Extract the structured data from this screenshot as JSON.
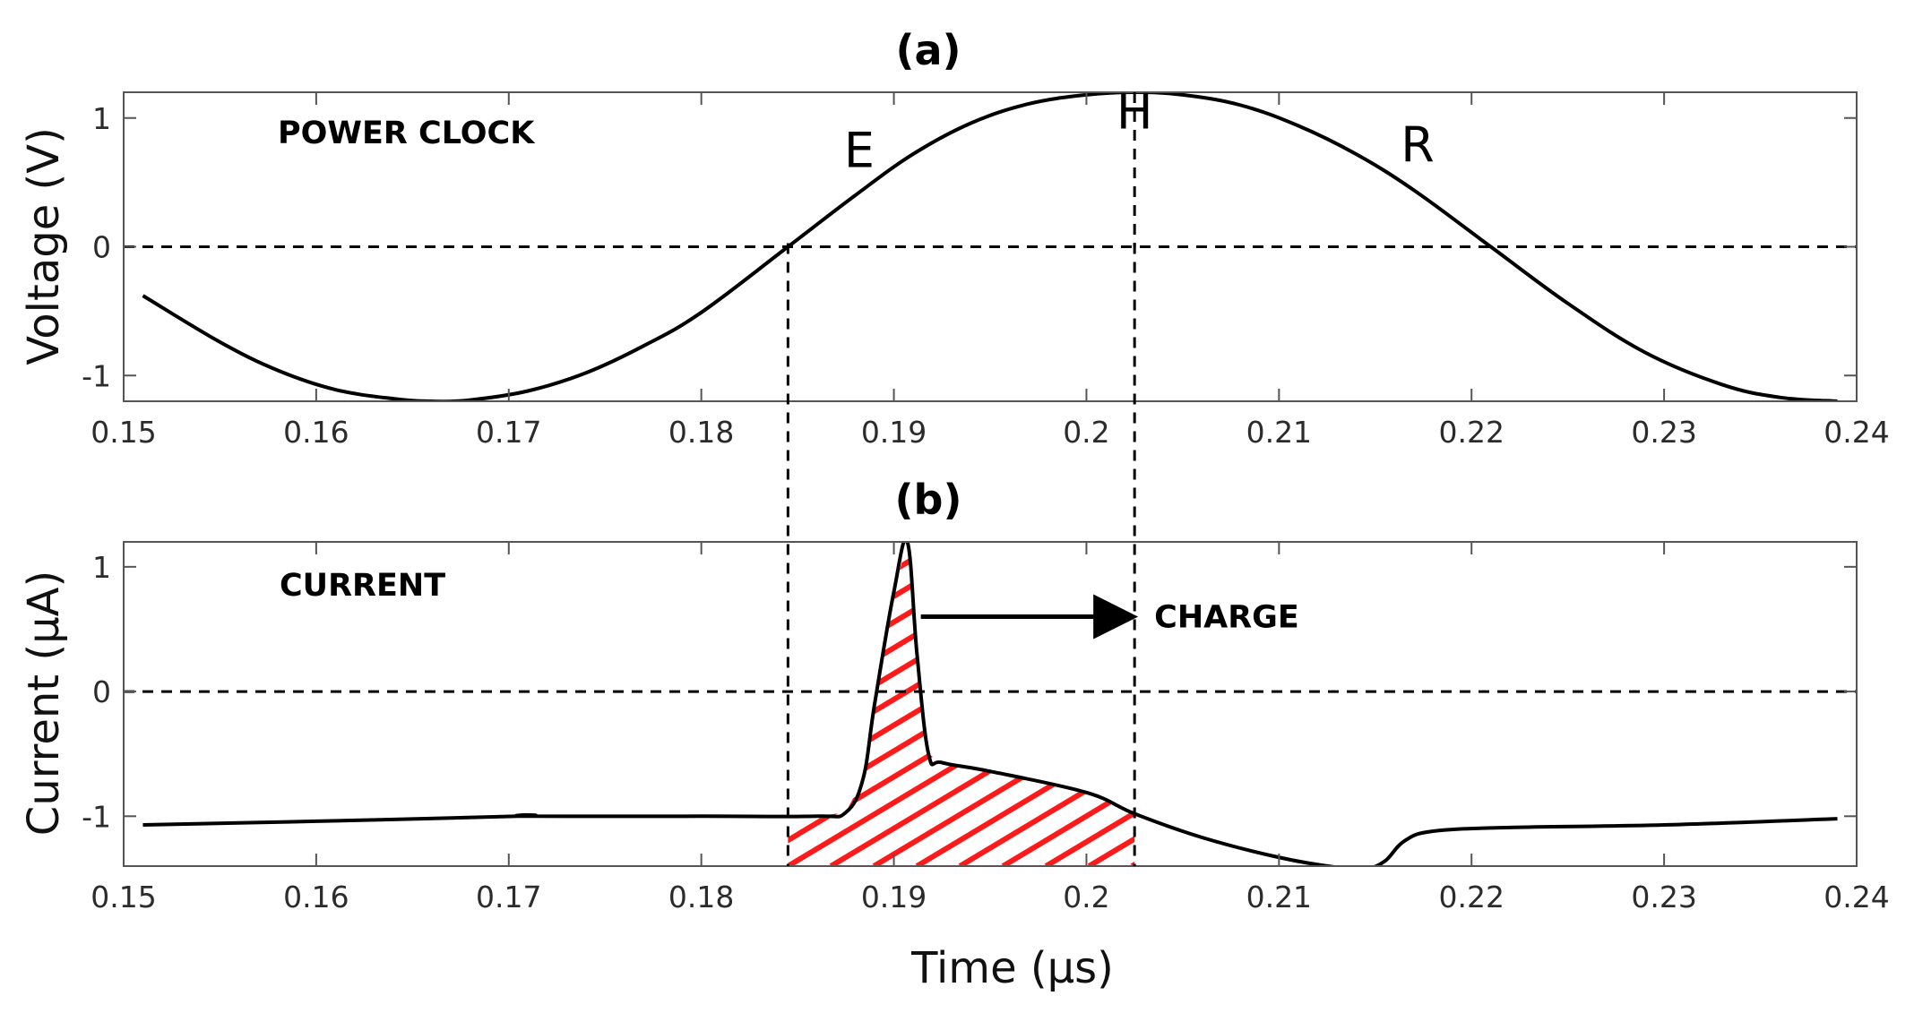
{
  "chart_data": [
    {
      "id": "a",
      "type": "line",
      "title": "(a)",
      "label": "POWER CLOCK",
      "xlabel": "",
      "ylabel": "Voltage (V)",
      "xlim": [
        0.15,
        0.24
      ],
      "ylim": [
        -1.2,
        1.2
      ],
      "xticks": [
        0.15,
        0.16,
        0.17,
        0.18,
        0.19,
        0.2,
        0.21,
        0.22,
        0.23,
        0.24
      ],
      "xtick_labels": [
        "0.15",
        "0.16",
        "0.17",
        "0.18",
        "0.19",
        "0.2",
        "0.21",
        "0.22",
        "0.23",
        "0.24"
      ],
      "yticks": [
        -1,
        0,
        1
      ],
      "ytick_labels": [
        "-1",
        "0",
        "1"
      ],
      "series": [
        {
          "name": "Power clock",
          "color": "#000000",
          "x": [
            0.151,
            0.155,
            0.158,
            0.161,
            0.164,
            0.166,
            0.168,
            0.171,
            0.174,
            0.177,
            0.18,
            0.1845,
            0.188,
            0.191,
            0.194,
            0.197,
            0.2,
            0.2025,
            0.205,
            0.208,
            0.211,
            0.214,
            0.217,
            0.221,
            0.225,
            0.229,
            0.233,
            0.236,
            0.239
          ],
          "values": [
            -0.38,
            -0.74,
            -0.96,
            -1.11,
            -1.18,
            -1.2,
            -1.19,
            -1.12,
            -0.98,
            -0.77,
            -0.51,
            0.0,
            0.4,
            0.72,
            0.96,
            1.11,
            1.18,
            1.2,
            1.18,
            1.1,
            0.94,
            0.72,
            0.44,
            0.0,
            -0.44,
            -0.82,
            -1.07,
            -1.17,
            -1.2
          ]
        }
      ],
      "phase_labels": [
        {
          "text": "E",
          "x": 0.1882,
          "y": 0.62
        },
        {
          "text": "H",
          "x": 0.2025,
          "y": 0.92
        },
        {
          "text": "R",
          "x": 0.2172,
          "y": 0.66
        }
      ],
      "reference_lines": {
        "h": [
          0
        ],
        "v": [
          0.1845,
          0.2025
        ]
      }
    },
    {
      "id": "b",
      "type": "line",
      "title": "(b)",
      "label": "CURRENT",
      "xlabel": "Time (μs)",
      "ylabel": "Current (μA)",
      "xlim": [
        0.15,
        0.24
      ],
      "ylim": [
        -1.4,
        1.2
      ],
      "xticks": [
        0.15,
        0.16,
        0.17,
        0.18,
        0.19,
        0.2,
        0.21,
        0.22,
        0.23,
        0.24
      ],
      "xtick_labels": [
        "0.15",
        "0.16",
        "0.17",
        "0.18",
        "0.19",
        "0.2",
        "0.21",
        "0.22",
        "0.23",
        "0.24"
      ],
      "yticks": [
        -1,
        0,
        1
      ],
      "ytick_labels": [
        "-1",
        "0",
        "1"
      ],
      "series": [
        {
          "name": "Current",
          "color": "#000000",
          "x": [
            0.151,
            0.16,
            0.1705,
            0.1708,
            0.1712,
            0.18,
            0.186,
            0.1875,
            0.1884,
            0.189,
            0.19,
            0.1907,
            0.1912,
            0.1918,
            0.1925,
            0.195,
            0.2,
            0.2025,
            0.206,
            0.21,
            0.213,
            0.2145,
            0.2155,
            0.2165,
            0.218,
            0.222,
            0.23,
            0.239
          ],
          "values": [
            -1.07,
            -1.04,
            -1.0,
            -0.99,
            -1.0,
            -1.0,
            -1.0,
            -0.97,
            -0.7,
            -0.1,
            0.8,
            1.2,
            0.3,
            -0.5,
            -0.57,
            -0.64,
            -0.81,
            -0.98,
            -1.17,
            -1.33,
            -1.41,
            -1.42,
            -1.36,
            -1.2,
            -1.12,
            -1.09,
            -1.07,
            -1.02
          ]
        }
      ],
      "charge_region": {
        "x_start": 0.1845,
        "x_end": 0.2025,
        "color": "#ff1a1a"
      },
      "annotation": {
        "text": "CHARGE",
        "arrow_from": [
          0.1914,
          0.6
        ],
        "arrow_to": [
          0.2025,
          0.6
        ]
      },
      "reference_lines": {
        "h": [
          0
        ],
        "v": [
          0.1845,
          0.2025
        ]
      }
    }
  ]
}
